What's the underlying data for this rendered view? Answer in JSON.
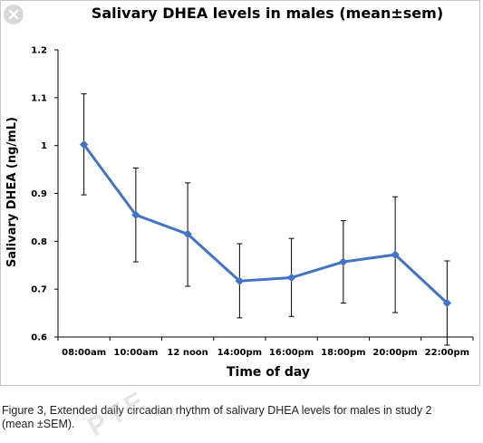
{
  "figure": {
    "caption_line1": "Figure 3, Extended daily circadian rhythm of salivary DHEA levels for males in study 2",
    "caption_line2": "(mean ±SEM).",
    "watermark": "PTE"
  },
  "chart_data": {
    "type": "line",
    "title": "Salivary DHEA levels in males (mean±sem)",
    "xlabel": "Time of day",
    "ylabel": "Salivary DHEA (ng/mL)",
    "categories": [
      "08:00am",
      "10:00am",
      "12 noon",
      "14:00pm",
      "16:00pm",
      "18:00pm",
      "20:00pm",
      "22:00pm"
    ],
    "series": [
      {
        "values": [
          1.002,
          0.855,
          0.815,
          0.717,
          0.724,
          0.757,
          0.772,
          0.671
        ],
        "error_upper": [
          1.108,
          0.953,
          0.922,
          0.795,
          0.806,
          0.843,
          0.893,
          0.759
        ],
        "error_lower": [
          0.897,
          0.757,
          0.706,
          0.64,
          0.643,
          0.671,
          0.651,
          0.583
        ],
        "color": "#4472c4",
        "marker": "diamond"
      }
    ],
    "ylim": [
      0.6,
      1.2
    ],
    "yticks": [
      "0.6",
      "0.7",
      "0.8",
      "0.9",
      "1",
      "1.1",
      "1.2"
    ],
    "grid": false
  },
  "icons": {
    "close": "close-icon"
  }
}
